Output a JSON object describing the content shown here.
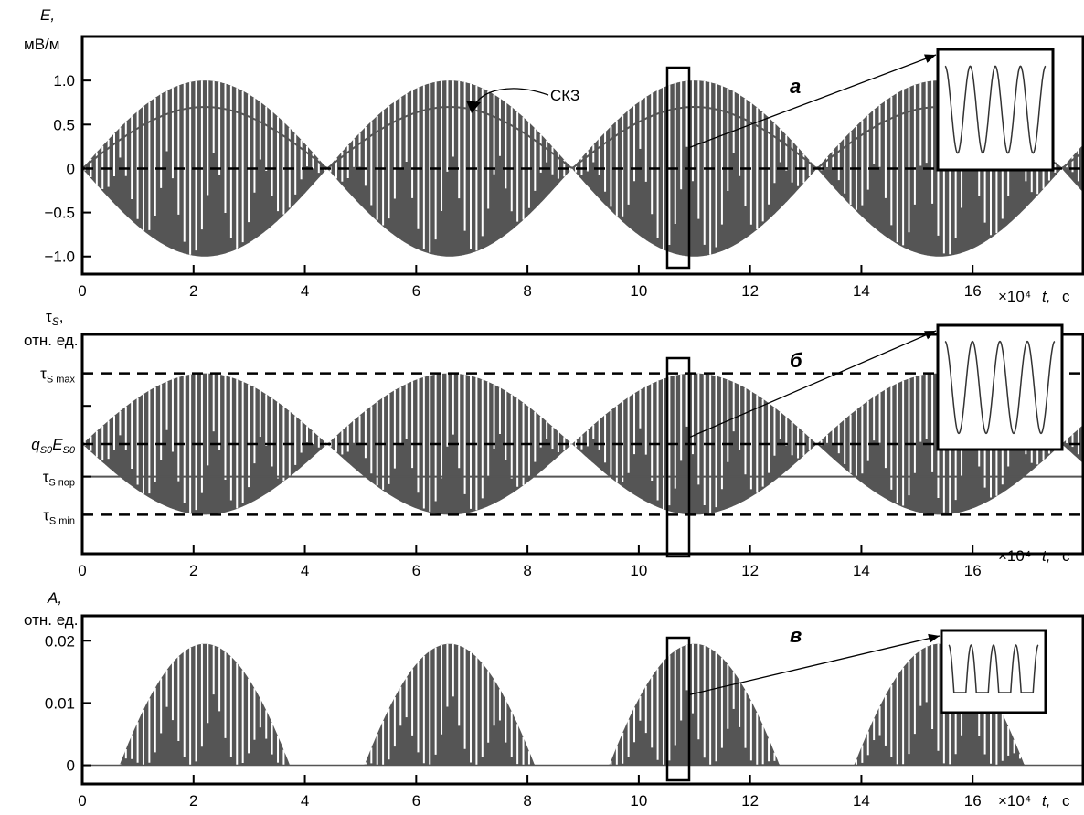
{
  "figure": {
    "background": "#ffffff",
    "wave_color": "#555555",
    "gap_color": "#ffffff",
    "line_color": "#000000"
  },
  "chart_data": [
    {
      "type": "line",
      "panel_label": "а",
      "ylabel_symbol": "E,",
      "ylabel_unit": "мВ/м",
      "xlabel_symbol": "t,",
      "xlabel_unit": "c",
      "x_multiplier": "×10⁴",
      "xlim": [
        0,
        18
      ],
      "ylim": [
        -1.2,
        1.5
      ],
      "x_ticks": [
        0,
        2,
        4,
        6,
        8,
        10,
        12,
        14,
        16
      ],
      "x_tick_labels": [
        "0",
        "2",
        "4",
        "6",
        "8",
        "10",
        "12",
        "14",
        "16"
      ],
      "y_ticks": [
        1.0,
        0.5,
        0,
        -0.5,
        -1.0
      ],
      "y_tick_labels": [
        "1.0",
        "0.5",
        "0",
        "−0.5",
        "−1.0"
      ],
      "series": [
        {
          "kind": "oscillation",
          "envelope_period": 4.4,
          "envelope_peak": 1.0,
          "baseline": 0
        },
        {
          "kind": "rms_curve",
          "annotation": "СКЗ",
          "x": [
            0,
            2.2,
            4.4,
            6.6,
            8.8,
            11.0,
            13.2,
            15.4,
            17.6
          ],
          "y": [
            0,
            0.7,
            0,
            0.7,
            0,
            0.7,
            0,
            0.7,
            0
          ]
        }
      ],
      "reference_lines": [
        {
          "y": 0,
          "style": "dashed"
        }
      ],
      "highlight_window": [
        10.6,
        11.0
      ],
      "inset": "zoomed sinusoid, 4 periods"
    },
    {
      "type": "line",
      "panel_label": "б",
      "ylabel_symbol": "τ",
      "ylabel_sub": "S",
      "ylabel_unit": "отн. ед.",
      "xlabel_symbol": "t,",
      "xlabel_unit": "c",
      "x_multiplier": "×10⁴",
      "xlim": [
        0,
        18
      ],
      "ylim": [
        -1.55,
        1.55
      ],
      "x_ticks": [
        0,
        2,
        4,
        6,
        8,
        10,
        12,
        14,
        16
      ],
      "x_tick_labels": [
        "0",
        "2",
        "4",
        "6",
        "8",
        "10",
        "12",
        "14",
        "16"
      ],
      "y_levels": [
        {
          "name": "τS max",
          "main": "τ",
          "sub": "S max",
          "value": 1.0,
          "style": "dashed"
        },
        {
          "name": "q_S0 E_S0",
          "value": 0.0,
          "style": "dashed"
        },
        {
          "name": "τS пор",
          "main": "τ",
          "sub": "S пор",
          "value": -0.46,
          "style": "solid"
        },
        {
          "name": "τS min",
          "main": "τ",
          "sub": "S min",
          "value": -1.0,
          "style": "dashed"
        }
      ],
      "extra_tick": 0.54,
      "level_label_q": {
        "q": "q",
        "q_sub": "S0",
        "e": "E",
        "e_sub": "S0"
      },
      "series": [
        {
          "kind": "oscillation",
          "envelope_period": 4.4,
          "envelope_peak": 1.0,
          "baseline": 0
        }
      ],
      "highlight_window": [
        10.6,
        11.0
      ],
      "inset": "zoomed sinusoid, 4 periods"
    },
    {
      "type": "line",
      "panel_label": "в",
      "ylabel_symbol": "A,",
      "ylabel_unit": "отн. ед.",
      "xlabel_symbol": "t,",
      "xlabel_unit": "c",
      "x_multiplier": "×10⁴",
      "xlim": [
        0,
        18
      ],
      "ylim": [
        -0.003,
        0.024
      ],
      "x_ticks": [
        0,
        2,
        4,
        6,
        8,
        10,
        12,
        14,
        16
      ],
      "x_tick_labels": [
        "0",
        "2",
        "4",
        "6",
        "8",
        "10",
        "12",
        "14",
        "16"
      ],
      "y_ticks": [
        0.02,
        0.01,
        0
      ],
      "y_tick_labels": [
        "0.02",
        "0.01",
        "0"
      ],
      "series": [
        {
          "kind": "rectified_oscillation",
          "envelope_period": 4.4,
          "envelope_peak": 0.0195,
          "threshold_fraction": 0.46
        }
      ],
      "highlight_window": [
        10.6,
        11.0
      ],
      "inset": "zoomed clipped sinusoid, 4 periods"
    }
  ]
}
